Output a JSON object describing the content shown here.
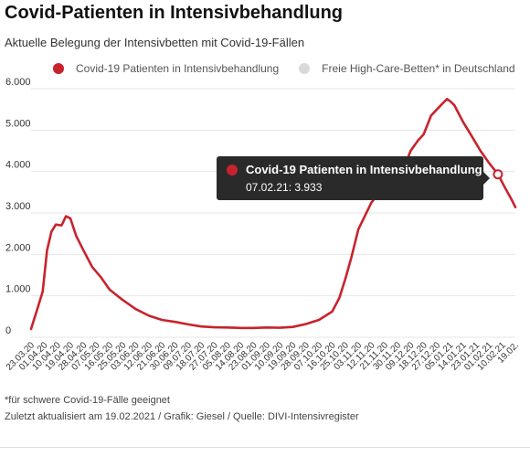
{
  "header": {
    "title": "Covid-Patienten in Intensivbehandlung",
    "subtitle": "Aktuelle Belegung der Intensivbetten mit Covid-19-Fällen"
  },
  "legend": [
    {
      "label": "Covid-19 Patienten in Intensivbehandlung",
      "color": "#c8232c"
    },
    {
      "label": "Freie High-Care-Betten* in Deutschland",
      "color": "#d9d9d9"
    }
  ],
  "tooltip": {
    "series": "Covid-19 Patienten in  Intensivbehandlung",
    "value": "07.02.21: 3.933",
    "color": "#c8232c"
  },
  "footer": {
    "footnote": "*für schwere Covid-19-Fälle geeignet",
    "source": "Zuletzt aktualisiert am 19.02.2021 / Grafik: Giesel / Quelle: DIVI-Intensivregister"
  },
  "chart_data": {
    "type": "line",
    "title": "Covid-Patienten in Intensivbehandlung",
    "xlabel": "",
    "ylabel": "",
    "ylim": [
      0,
      6000
    ],
    "yticks": [
      {
        "value": 0,
        "label": "0"
      },
      {
        "value": 1000,
        "label": "1.000"
      },
      {
        "value": 2000,
        "label": "2.000"
      },
      {
        "value": 3000,
        "label": "3.000"
      },
      {
        "value": 4000,
        "label": "4.000"
      },
      {
        "value": 5000,
        "label": "5.000"
      },
      {
        "value": 6000,
        "label": "6.000"
      }
    ],
    "xlim": [
      "2020-03-23",
      "2021-02-19"
    ],
    "xticks": [
      "23.03.20",
      "01.04.20",
      "10.04.20",
      "19.04.20",
      "28.04.20",
      "07.05.20",
      "16.05.20",
      "25.05.20",
      "03.06.20",
      "12.06.20",
      "21.06.20",
      "30.06.20",
      "09.07.20",
      "18.07.20",
      "27.07.20",
      "05.08.20",
      "14.08.20",
      "23.08.20",
      "01.09.20",
      "10.09.20",
      "19.09.20",
      "28.09.20",
      "07.10.20",
      "16.10.20",
      "25.10.20",
      "03.11.20",
      "12.11.20",
      "21.11.20",
      "30.11.20",
      "09.12.20",
      "18.12.20",
      "27.12.20",
      "05.01.21",
      "14.01.21",
      "23.01.21",
      "01.02.21",
      "10.02.21",
      "19.02."
    ],
    "grid": true,
    "series": [
      {
        "name": "Covid-19 Patienten in Intensivbehandlung",
        "color": "#c8232c",
        "points": [
          [
            "2020-03-23",
            200
          ],
          [
            "2020-03-27",
            650
          ],
          [
            "2020-03-31",
            1100
          ],
          [
            "2020-04-03",
            2100
          ],
          [
            "2020-04-06",
            2550
          ],
          [
            "2020-04-09",
            2720
          ],
          [
            "2020-04-13",
            2700
          ],
          [
            "2020-04-16",
            2920
          ],
          [
            "2020-04-19",
            2870
          ],
          [
            "2020-04-23",
            2450
          ],
          [
            "2020-04-28",
            2100
          ],
          [
            "2020-05-04",
            1700
          ],
          [
            "2020-05-10",
            1450
          ],
          [
            "2020-05-16",
            1150
          ],
          [
            "2020-05-25",
            900
          ],
          [
            "2020-06-03",
            680
          ],
          [
            "2020-06-12",
            520
          ],
          [
            "2020-06-21",
            420
          ],
          [
            "2020-06-30",
            370
          ],
          [
            "2020-07-09",
            310
          ],
          [
            "2020-07-18",
            260
          ],
          [
            "2020-07-27",
            240
          ],
          [
            "2020-08-05",
            235
          ],
          [
            "2020-08-14",
            225
          ],
          [
            "2020-08-23",
            225
          ],
          [
            "2020-09-01",
            235
          ],
          [
            "2020-09-10",
            230
          ],
          [
            "2020-09-19",
            250
          ],
          [
            "2020-09-28",
            320
          ],
          [
            "2020-10-07",
            420
          ],
          [
            "2020-10-16",
            620
          ],
          [
            "2020-10-21",
            950
          ],
          [
            "2020-10-25",
            1400
          ],
          [
            "2020-10-29",
            1900
          ],
          [
            "2020-11-03",
            2600
          ],
          [
            "2020-11-12",
            3250
          ],
          [
            "2020-11-21",
            3650
          ],
          [
            "2020-11-30",
            3850
          ],
          [
            "2020-12-05",
            4150
          ],
          [
            "2020-12-09",
            4500
          ],
          [
            "2020-12-14",
            4750
          ],
          [
            "2020-12-18",
            4900
          ],
          [
            "2020-12-23",
            5350
          ],
          [
            "2020-12-27",
            5500
          ],
          [
            "2021-01-01",
            5680
          ],
          [
            "2021-01-03",
            5750
          ],
          [
            "2021-01-05",
            5700
          ],
          [
            "2021-01-08",
            5600
          ],
          [
            "2021-01-14",
            5200
          ],
          [
            "2021-01-20",
            4850
          ],
          [
            "2021-01-26",
            4500
          ],
          [
            "2021-02-01",
            4200
          ],
          [
            "2021-02-07",
            3933
          ],
          [
            "2021-02-12",
            3600
          ],
          [
            "2021-02-16",
            3350
          ],
          [
            "2021-02-19",
            3140
          ]
        ]
      }
    ],
    "highlight": {
      "x": "2021-02-07",
      "y": 3933
    }
  }
}
